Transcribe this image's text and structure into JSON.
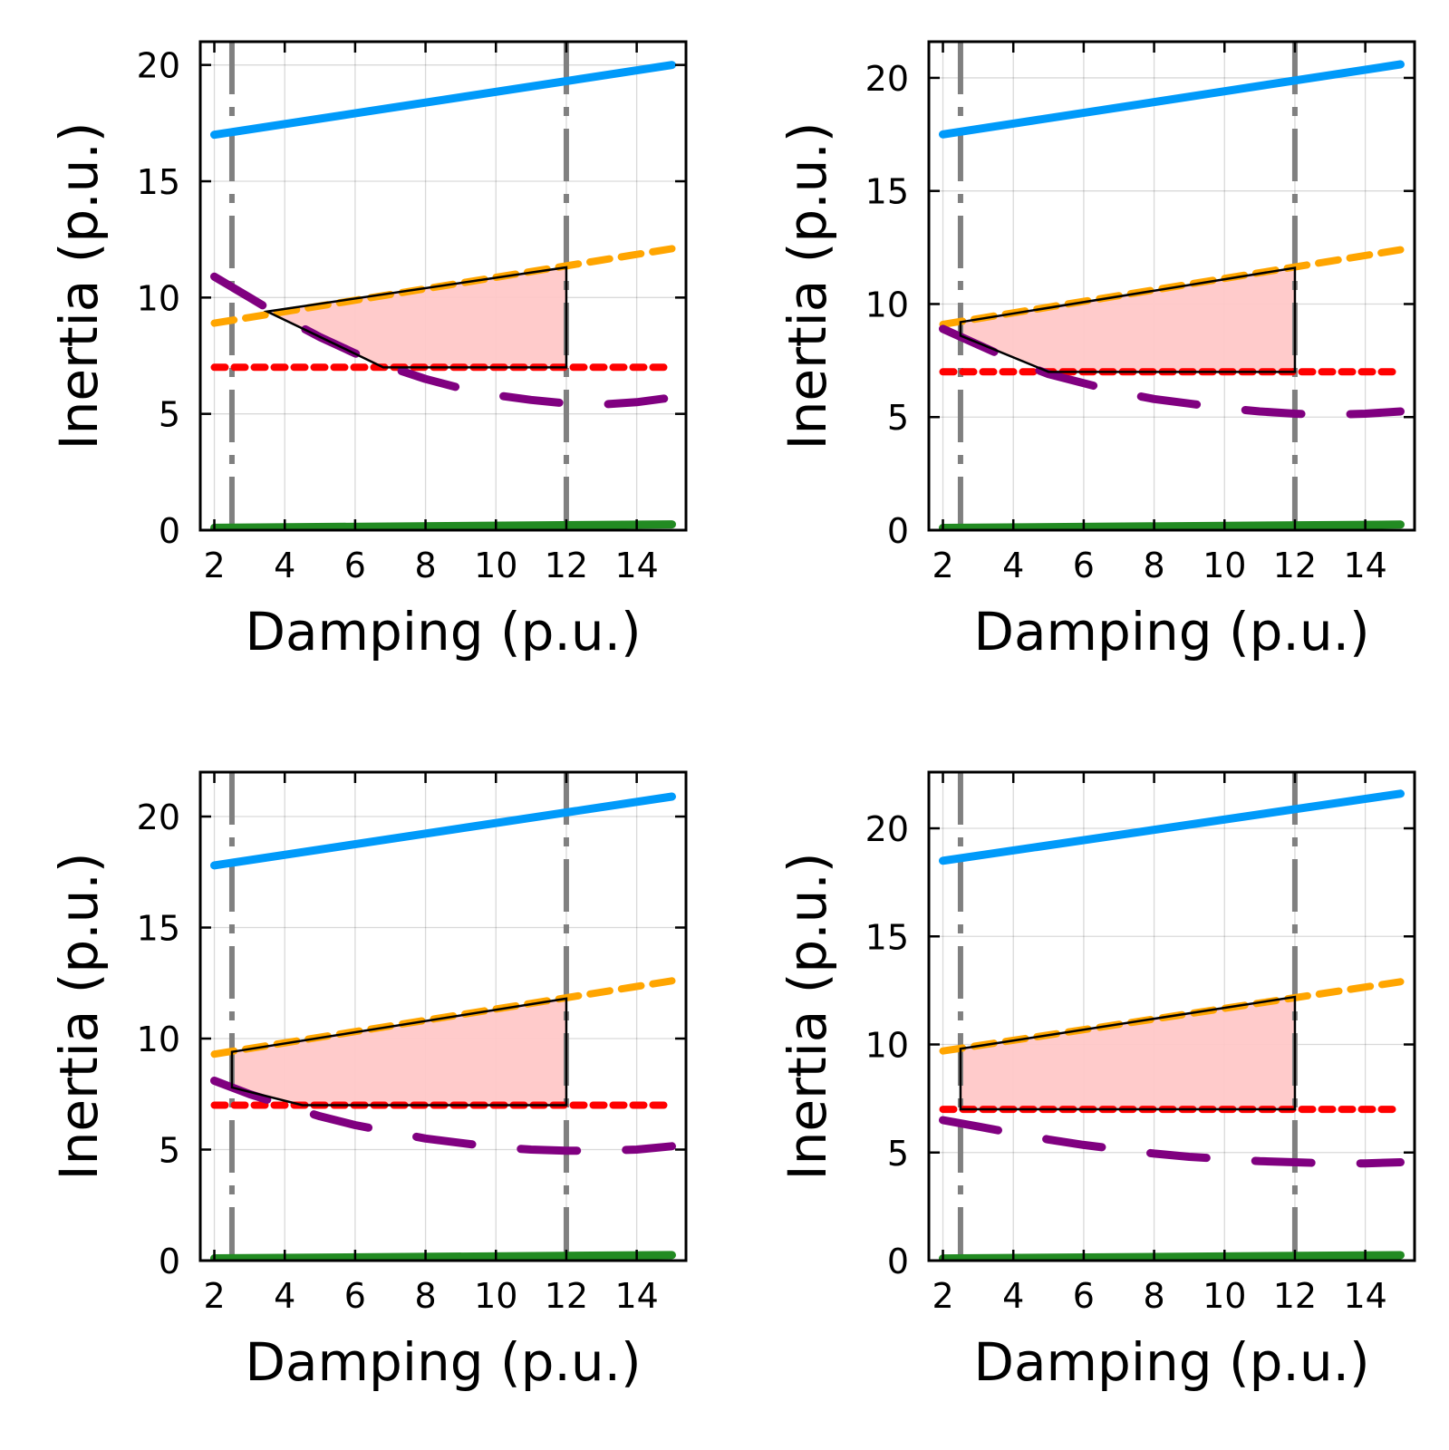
{
  "colors": {
    "upper_limit": "#009AFA",
    "rocof_limit": "#FFA500",
    "freq_limit": "#FF0000",
    "nadir_limit": "#800080",
    "lower_limit": "#228B22",
    "damping_bounds": "#808080",
    "feasible_fill": "#FFC8C8",
    "feasible_edge": "#000000"
  },
  "chart_data": [
    {
      "type": "line",
      "xlabel": "Damping (p.u.)",
      "ylabel": "Inertia (p.u.)",
      "xlim": [
        1.6,
        15.4
      ],
      "ylim": [
        0,
        21
      ],
      "xticks": [
        2,
        4,
        6,
        8,
        10,
        12,
        14
      ],
      "yticks": [
        0,
        5,
        10,
        15,
        20
      ],
      "grid": true,
      "damping_bounds": [
        2.5,
        12
      ],
      "series": [
        {
          "role": "upper_limit",
          "style": "solid",
          "x": [
            2,
            15
          ],
          "y": [
            17.0,
            20.0
          ]
        },
        {
          "role": "rocof_limit",
          "style": "dash",
          "x": [
            2,
            15
          ],
          "y": [
            8.9,
            12.1
          ]
        },
        {
          "role": "freq_limit",
          "style": "dot",
          "x": [
            2,
            15
          ],
          "y": [
            7.0,
            7.0
          ]
        },
        {
          "role": "nadir_limit",
          "style": "longdash",
          "x": [
            2,
            3,
            4,
            5,
            6,
            7,
            8,
            9,
            10,
            11,
            12,
            13,
            14,
            15
          ],
          "y": [
            10.9,
            10.0,
            9.1,
            8.3,
            7.6,
            7.0,
            6.5,
            6.1,
            5.8,
            5.6,
            5.45,
            5.4,
            5.5,
            5.7
          ]
        },
        {
          "role": "lower_limit",
          "style": "solid",
          "x": [
            2,
            15
          ],
          "y": [
            0.1,
            0.25
          ]
        }
      ],
      "feasible_region": {
        "x": [
          3.5,
          12,
          12,
          6.8
        ],
        "y": [
          9.4,
          11.3,
          7.0,
          7.0
        ]
      }
    },
    {
      "type": "line",
      "xlabel": "Damping (p.u.)",
      "ylabel": "Inertia (p.u.)",
      "xlim": [
        1.6,
        15.4
      ],
      "ylim": [
        0,
        21.6
      ],
      "xticks": [
        2,
        4,
        6,
        8,
        10,
        12,
        14
      ],
      "yticks": [
        0,
        5,
        10,
        15,
        20
      ],
      "grid": true,
      "damping_bounds": [
        2.5,
        12
      ],
      "series": [
        {
          "role": "upper_limit",
          "style": "solid",
          "x": [
            2,
            15
          ],
          "y": [
            17.5,
            20.6
          ]
        },
        {
          "role": "rocof_limit",
          "style": "dash",
          "x": [
            2,
            15
          ],
          "y": [
            9.1,
            12.4
          ]
        },
        {
          "role": "freq_limit",
          "style": "dot",
          "x": [
            2,
            15
          ],
          "y": [
            7.0,
            7.0
          ]
        },
        {
          "role": "nadir_limit",
          "style": "longdash",
          "x": [
            2,
            3,
            4,
            5,
            6,
            7,
            8,
            9,
            10,
            11,
            12,
            13,
            14,
            15
          ],
          "y": [
            8.9,
            8.2,
            7.5,
            6.9,
            6.5,
            6.1,
            5.8,
            5.6,
            5.4,
            5.25,
            5.15,
            5.1,
            5.15,
            5.25
          ]
        },
        {
          "role": "lower_limit",
          "style": "solid",
          "x": [
            2,
            15
          ],
          "y": [
            0.1,
            0.25
          ]
        }
      ],
      "feasible_region": {
        "x": [
          2.5,
          12,
          12,
          5.0,
          2.5
        ],
        "y": [
          9.2,
          11.6,
          7.0,
          7.0,
          8.6
        ]
      }
    },
    {
      "type": "line",
      "xlabel": "Damping (p.u.)",
      "ylabel": "Inertia (p.u.)",
      "xlim": [
        1.6,
        15.4
      ],
      "ylim": [
        0,
        22
      ],
      "xticks": [
        2,
        4,
        6,
        8,
        10,
        12,
        14
      ],
      "yticks": [
        0,
        5,
        10,
        15,
        20
      ],
      "grid": true,
      "damping_bounds": [
        2.5,
        12
      ],
      "series": [
        {
          "role": "upper_limit",
          "style": "solid",
          "x": [
            2,
            15
          ],
          "y": [
            17.8,
            20.9
          ]
        },
        {
          "role": "rocof_limit",
          "style": "dash",
          "x": [
            2,
            15
          ],
          "y": [
            9.3,
            12.6
          ]
        },
        {
          "role": "freq_limit",
          "style": "dot",
          "x": [
            2,
            15
          ],
          "y": [
            7.0,
            7.0
          ]
        },
        {
          "role": "nadir_limit",
          "style": "longdash",
          "x": [
            2,
            3,
            4,
            5,
            6,
            7,
            8,
            9,
            10,
            11,
            12,
            13,
            14,
            15
          ],
          "y": [
            8.1,
            7.5,
            7.0,
            6.5,
            6.1,
            5.8,
            5.5,
            5.3,
            5.1,
            5.0,
            4.95,
            4.95,
            5.0,
            5.15
          ]
        },
        {
          "role": "lower_limit",
          "style": "solid",
          "x": [
            2,
            15
          ],
          "y": [
            0.1,
            0.25
          ]
        }
      ],
      "feasible_region": {
        "x": [
          2.5,
          12,
          12,
          4.5,
          2.5
        ],
        "y": [
          9.4,
          11.8,
          7.0,
          7.0,
          7.8
        ]
      }
    },
    {
      "type": "line",
      "xlabel": "Damping (p.u.)",
      "ylabel": "Inertia (p.u.)",
      "xlim": [
        1.6,
        15.4
      ],
      "ylim": [
        0,
        22.6
      ],
      "xticks": [
        2,
        4,
        6,
        8,
        10,
        12,
        14
      ],
      "yticks": [
        0,
        5,
        10,
        15,
        20
      ],
      "grid": true,
      "damping_bounds": [
        2.5,
        12
      ],
      "series": [
        {
          "role": "upper_limit",
          "style": "solid",
          "x": [
            2,
            15
          ],
          "y": [
            18.5,
            21.6
          ]
        },
        {
          "role": "rocof_limit",
          "style": "dash",
          "x": [
            2,
            15
          ],
          "y": [
            9.7,
            12.9
          ]
        },
        {
          "role": "freq_limit",
          "style": "dot",
          "x": [
            2,
            15
          ],
          "y": [
            7.0,
            7.0
          ]
        },
        {
          "role": "nadir_limit",
          "style": "longdash",
          "x": [
            2,
            3,
            4,
            5,
            6,
            7,
            8,
            9,
            10,
            11,
            12,
            13,
            14,
            15
          ],
          "y": [
            6.5,
            6.2,
            5.9,
            5.6,
            5.35,
            5.15,
            4.95,
            4.8,
            4.7,
            4.6,
            4.55,
            4.5,
            4.5,
            4.55
          ]
        },
        {
          "role": "lower_limit",
          "style": "solid",
          "x": [
            2,
            15
          ],
          "y": [
            0.1,
            0.25
          ]
        }
      ],
      "feasible_region": {
        "x": [
          2.5,
          12,
          12,
          2.5
        ],
        "y": [
          9.8,
          12.2,
          7.0,
          7.0
        ]
      }
    }
  ]
}
